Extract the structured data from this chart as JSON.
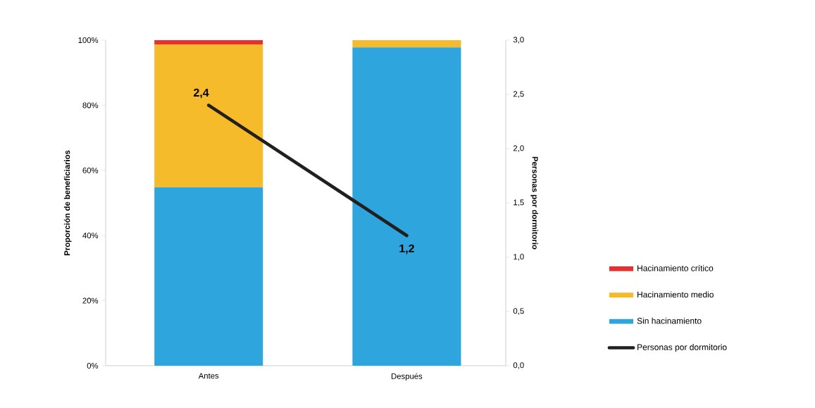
{
  "chart_data": {
    "type": "bar",
    "stacked": true,
    "categories": [
      "Antes",
      "Después"
    ],
    "series": [
      {
        "name": "Sin hacinamiento",
        "color": "#2ea6dd",
        "values": [
          54.8,
          97.8
        ]
      },
      {
        "name": "Hacinamiento medio",
        "color": "#f6bb2a",
        "values": [
          43.9,
          2.2
        ]
      },
      {
        "name": "Hacinamiento crítico",
        "color": "#e8312f",
        "values": [
          1.3,
          0
        ]
      },
      {
        "name": "Personas por dormitorio",
        "type": "line",
        "axis": "y2",
        "color": "#231f20",
        "values": [
          2.4,
          1.2
        ],
        "value_labels": [
          "2,4",
          "1,2"
        ]
      }
    ],
    "ylabel": "Proporción de beneficiarios",
    "y2label": "Personas por dormitorio",
    "ylim": [
      0,
      100
    ],
    "yticks": [
      {
        "value": 0,
        "label": "0%"
      },
      {
        "value": 20,
        "label": "20%"
      },
      {
        "value": 40,
        "label": "40%"
      },
      {
        "value": 60,
        "label": "60%"
      },
      {
        "value": 80,
        "label": "80%"
      },
      {
        "value": 100,
        "label": "100%"
      }
    ],
    "y2lim": [
      0,
      3
    ],
    "y2ticks": [
      {
        "value": 0,
        "label": "0,0"
      },
      {
        "value": 0.5,
        "label": "0,5"
      },
      {
        "value": 1,
        "label": "1,0"
      },
      {
        "value": 1.5,
        "label": "1,5"
      },
      {
        "value": 2,
        "label": "2,0"
      },
      {
        "value": 2.5,
        "label": "2,5"
      },
      {
        "value": 3,
        "label": "3,0"
      }
    ],
    "legend": "right",
    "grid": false,
    "marker": "none",
    "line_style": "solid"
  }
}
